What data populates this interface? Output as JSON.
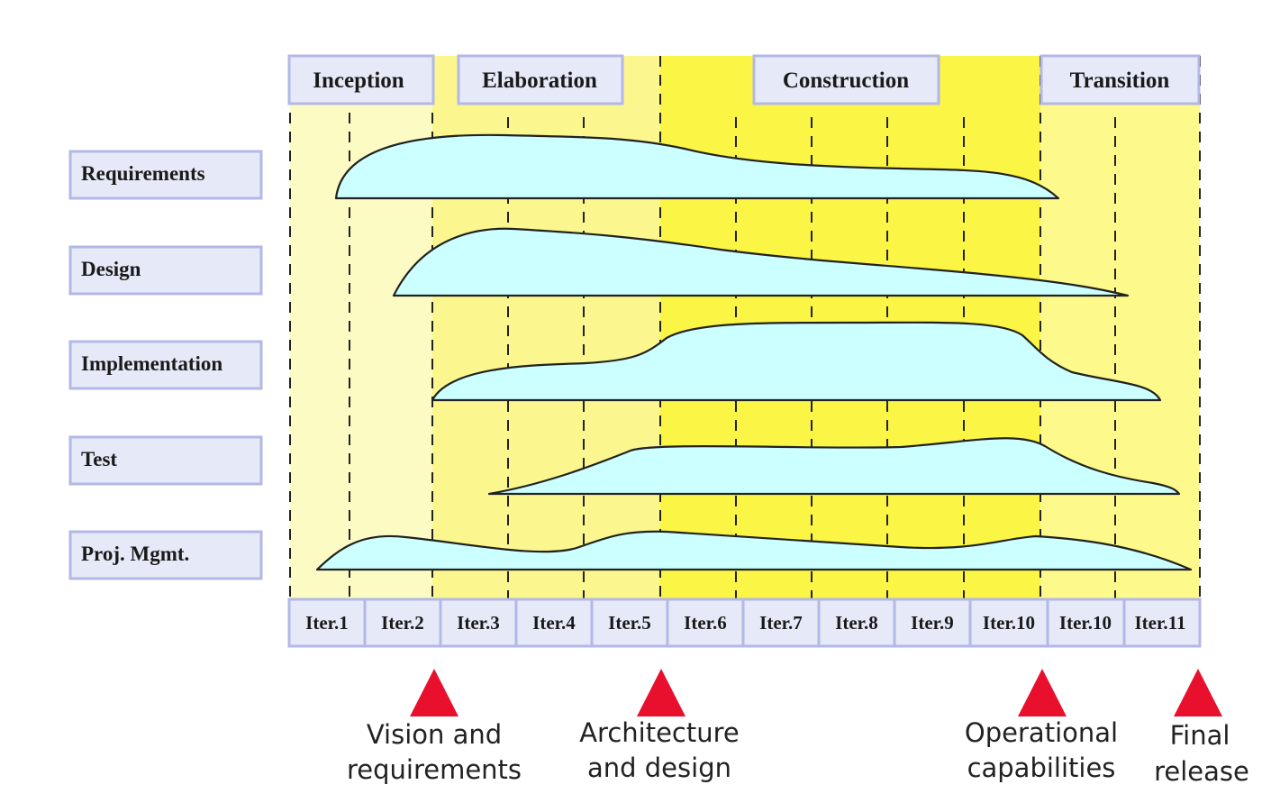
{
  "phases": [
    {
      "label": "Inception",
      "shade": "#fdfbc4"
    },
    {
      "label": "Elaboration",
      "shade": "#fbf78e"
    },
    {
      "label": "Construction",
      "shade": "#fbf546"
    },
    {
      "label": "Transition",
      "shade": "#fdf98a"
    }
  ],
  "disciplines": [
    {
      "label": "Requirements"
    },
    {
      "label": "Design"
    },
    {
      "label": "Implementation"
    },
    {
      "label": "Test"
    },
    {
      "label": "Proj. Mgmt."
    }
  ],
  "iterations": [
    "Iter.1",
    "Iter.2",
    "Iter.3",
    "Iter.4",
    "Iter.5",
    "Iter.6",
    "Iter.7",
    "Iter.8",
    "Iter.9",
    "Iter.10",
    "Iter.10",
    "Iter.11"
  ],
  "milestones": [
    {
      "lines": [
        "Vision and",
        "requirements"
      ]
    },
    {
      "lines": [
        "Architecture",
        "and design"
      ]
    },
    {
      "lines": [
        "Operational",
        "capabilities"
      ]
    },
    {
      "lines": [
        "Final",
        "release"
      ]
    }
  ],
  "colors": {
    "label_box_fill": "#e6eaf8",
    "label_box_border": "#b3b8e6",
    "hump_fill": "#ccffff",
    "hump_stroke": "#222222",
    "milestone_marker": "#e8102c",
    "divider": "#222222"
  }
}
